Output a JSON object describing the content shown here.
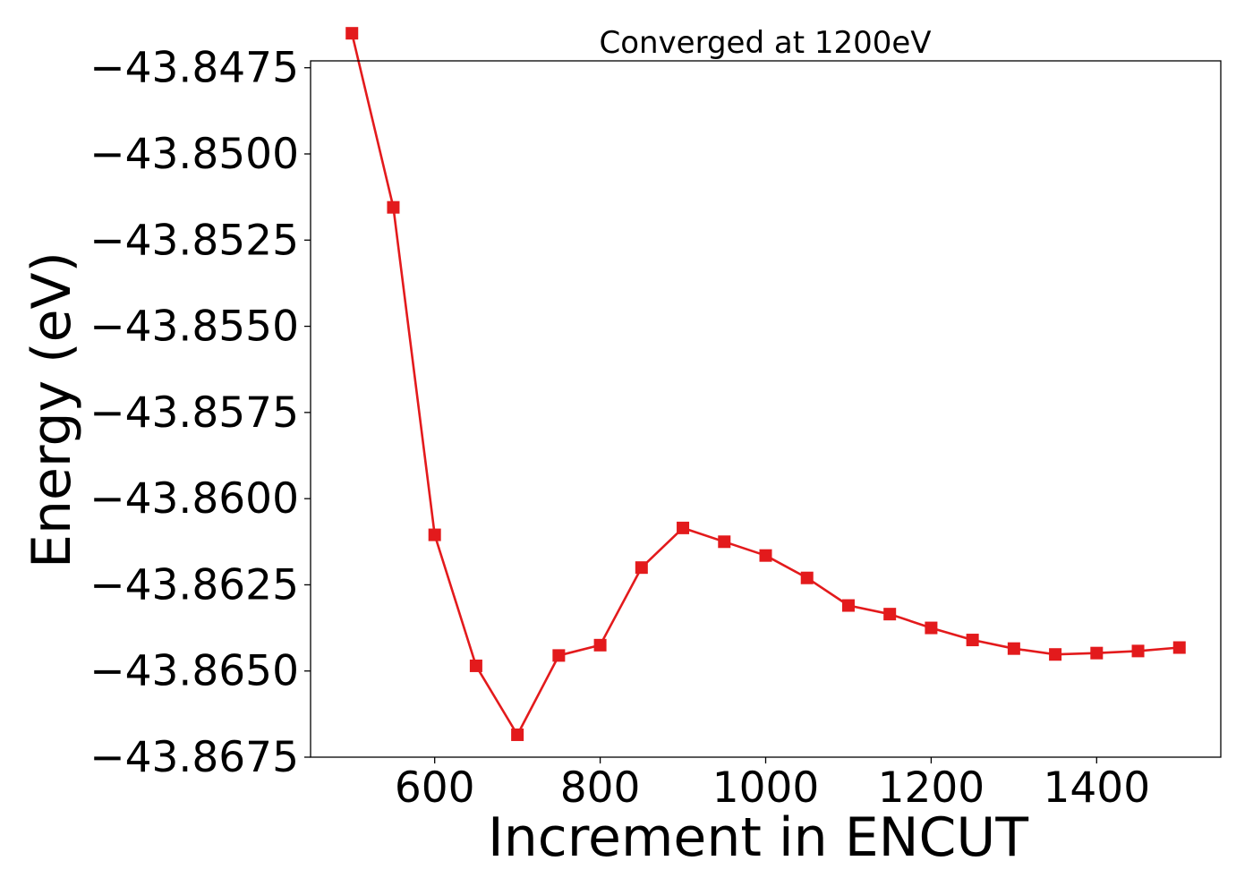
{
  "chart_data": {
    "type": "line",
    "title": "Converged at 1200eV",
    "xlabel": "Increment in ENCUT",
    "ylabel": "Energy (eV)",
    "xlim": [
      450,
      1550
    ],
    "ylim": [
      -43.8675,
      -43.8473
    ],
    "x_ticks": [
      600,
      800,
      1000,
      1200,
      1400
    ],
    "y_ticks": [
      -43.8475,
      -43.85,
      -43.8525,
      -43.855,
      -43.8575,
      -43.86,
      -43.8625,
      -43.865,
      -43.8675
    ],
    "x_tick_labels": [
      "600",
      "800",
      "1000",
      "1200",
      "1400"
    ],
    "y_tick_labels": [
      "−43.8475",
      "−43.8500",
      "−43.8525",
      "−43.8550",
      "−43.8575",
      "−43.8600",
      "−43.8625",
      "−43.8650",
      "−43.8675"
    ],
    "grid": false,
    "series": [
      {
        "color": "#e31a1c",
        "marker": "square",
        "x": [
          500,
          550,
          600,
          650,
          700,
          750,
          800,
          850,
          900,
          950,
          1000,
          1050,
          1100,
          1150,
          1200,
          1250,
          1300,
          1350,
          1400,
          1450,
          1500
        ],
        "y": [
          -43.8465,
          -43.85155,
          -43.86105,
          -43.86485,
          -43.86685,
          -43.86455,
          -43.86425,
          -43.862,
          -43.86085,
          -43.86125,
          -43.86165,
          -43.8623,
          -43.8631,
          -43.86335,
          -43.86375,
          -43.8641,
          -43.86435,
          -43.86452,
          -43.86448,
          -43.86442,
          -43.86432
        ]
      }
    ]
  }
}
